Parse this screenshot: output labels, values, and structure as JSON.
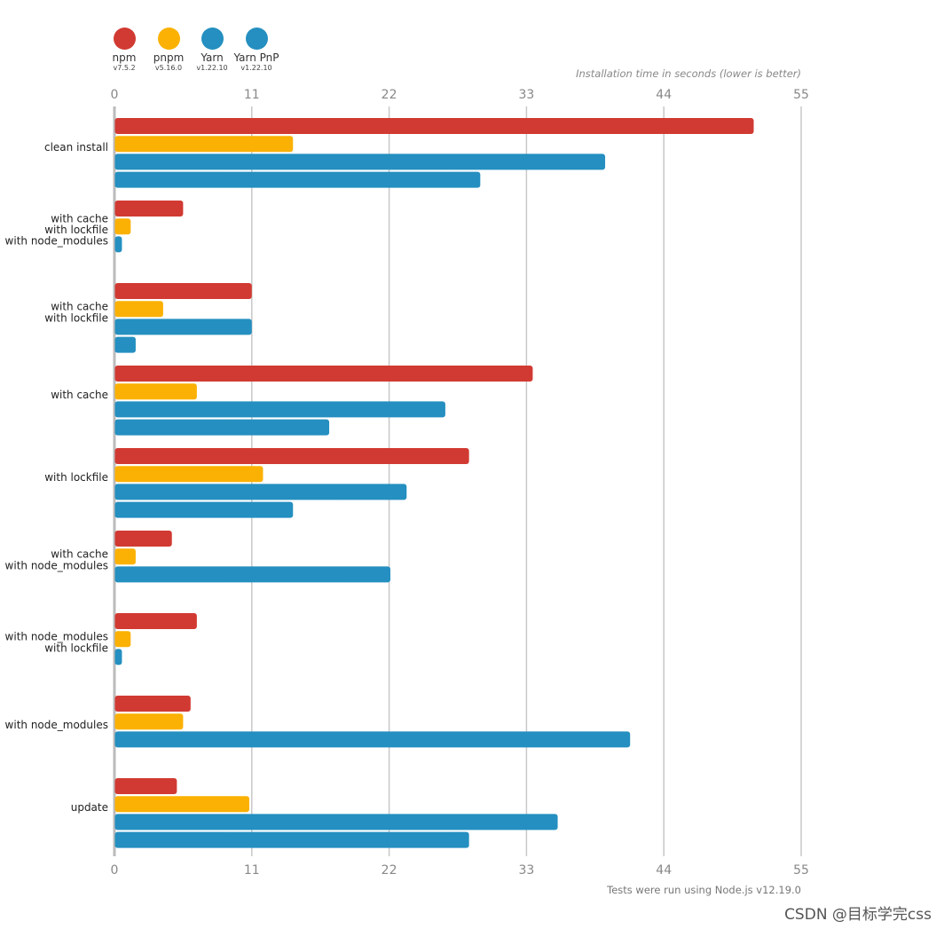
{
  "chart_data": {
    "type": "bar",
    "orientation": "horizontal",
    "title": "Installation time in seconds (lower is better)",
    "footnote": "Tests were run using Node.js v12.19.0",
    "xlim": [
      0,
      55
    ],
    "xticks": [
      0,
      11,
      22,
      33,
      44,
      55
    ],
    "categories": [
      [
        "clean install"
      ],
      [
        "with cache",
        "with lockfile",
        "with node_modules"
      ],
      [
        "with cache",
        "with lockfile"
      ],
      [
        "with cache"
      ],
      [
        "with lockfile"
      ],
      [
        "with cache",
        "with node_modules"
      ],
      [
        "with node_modules",
        "with lockfile"
      ],
      [
        "with node_modules"
      ],
      [
        "update"
      ]
    ],
    "series": [
      {
        "name": "npm",
        "version": "v7.5.2",
        "color": "#d13a32",
        "values": [
          51.2,
          5.5,
          11.0,
          33.5,
          28.4,
          4.6,
          6.6,
          6.1,
          5.0
        ]
      },
      {
        "name": "pnpm",
        "version": "v5.16.0",
        "color": "#fbb103",
        "values": [
          14.3,
          1.3,
          3.9,
          6.6,
          11.9,
          1.7,
          1.3,
          5.5,
          10.8
        ]
      },
      {
        "name": "Yarn",
        "version": "v1.22.10",
        "color": "#248fc0",
        "values": [
          39.3,
          0.6,
          11.0,
          26.5,
          23.4,
          22.1,
          0.6,
          41.3,
          35.5
        ]
      },
      {
        "name": "Yarn PnP",
        "version": "v1.22.10",
        "color": "#248fc0",
        "values": [
          29.3,
          null,
          1.7,
          17.2,
          14.3,
          null,
          null,
          null,
          28.4
        ]
      }
    ]
  },
  "watermark": "CSDN @目标学完css"
}
